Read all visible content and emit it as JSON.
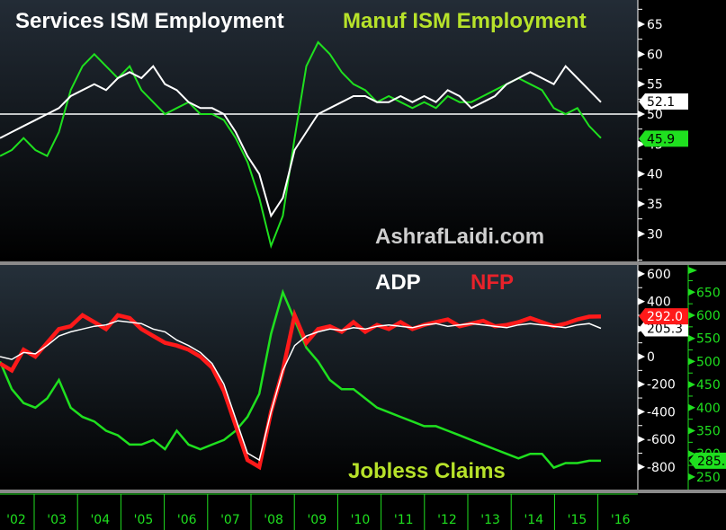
{
  "chart_data": [
    {
      "type": "line",
      "title": "Services ISM Employment vs Manuf ISM Employment",
      "watermark": "AshrafLaidi.com",
      "x": [
        "'02",
        "'03",
        "'04",
        "'05",
        "'06",
        "'07",
        "'08",
        "'09",
        "'10",
        "'11",
        "'12",
        "'13",
        "'14",
        "'15",
        "'16"
      ],
      "yaxis": {
        "ticks": [
          30,
          35,
          40,
          45,
          50,
          55,
          60,
          65
        ],
        "range": [
          25,
          68
        ],
        "side": "right"
      },
      "reference_line": 50,
      "series": [
        {
          "name": "Services ISM Employment",
          "color": "#ffffff",
          "last_value": 52.1,
          "values": [
            46,
            47,
            48,
            49,
            50,
            51,
            53,
            54,
            55,
            54,
            56,
            57,
            56,
            58,
            55,
            54,
            52,
            51,
            51,
            50,
            47,
            43,
            40,
            33,
            36,
            44,
            47,
            50,
            51,
            52,
            53,
            53,
            52,
            52,
            53,
            52,
            53,
            52,
            54,
            53,
            51,
            52,
            53,
            55,
            56,
            57,
            56,
            55,
            58,
            56,
            54,
            52
          ]
        },
        {
          "name": "Manuf ISM Employment",
          "color": "#1fe01f",
          "last_value": 45.9,
          "values": [
            43,
            44,
            46,
            44,
            43,
            47,
            54,
            58,
            60,
            58,
            56,
            58,
            54,
            52,
            50,
            51,
            52,
            50,
            50,
            49,
            46,
            42,
            36,
            28,
            33,
            46,
            58,
            62,
            60,
            57,
            55,
            54,
            52,
            53,
            52,
            51,
            52,
            51,
            53,
            52,
            52,
            53,
            54,
            55,
            56,
            55,
            54,
            51,
            50,
            51,
            48,
            46
          ]
        }
      ],
      "labels": {
        "services": "Services ISM Employment",
        "manuf": "Manuf ISM Employment"
      }
    },
    {
      "type": "line",
      "title": "ADP vs NFP vs Jobless Claims",
      "x": [
        "'02",
        "'03",
        "'04",
        "'05",
        "'06",
        "'07",
        "'08",
        "'09",
        "'10",
        "'11",
        "'12",
        "'13",
        "'14",
        "'15",
        "'16"
      ],
      "yaxis_left": {
        "ticks": [
          -800,
          -600,
          -400,
          -200,
          0,
          200,
          400,
          600
        ],
        "range": [
          -880,
          640
        ]
      },
      "yaxis_right": {
        "ticks": [
          250,
          300,
          350,
          400,
          450,
          500,
          550,
          600,
          650
        ],
        "range": [
          230,
          680
        ]
      },
      "series": [
        {
          "name": "ADP",
          "color": "#ffffff",
          "axis": "left",
          "last_value": 205.3,
          "values": [
            0,
            -20,
            30,
            20,
            80,
            150,
            180,
            200,
            220,
            230,
            260,
            250,
            240,
            200,
            180,
            120,
            80,
            30,
            -50,
            -200,
            -450,
            -700,
            -750,
            -400,
            -100,
            80,
            150,
            180,
            200,
            190,
            210,
            200,
            220,
            230,
            220,
            210,
            230,
            240,
            220,
            230,
            240,
            230,
            220,
            210,
            230,
            240,
            230,
            220,
            210,
            230,
            240,
            205
          ]
        },
        {
          "name": "NFP",
          "color": "#ff1a1a",
          "axis": "left",
          "last_value": 292.0,
          "values": [
            -50,
            -100,
            50,
            0,
            100,
            200,
            220,
            300,
            250,
            200,
            300,
            280,
            200,
            150,
            100,
            80,
            50,
            0,
            -80,
            -250,
            -500,
            -750,
            -800,
            -400,
            -100,
            300,
            100,
            200,
            220,
            180,
            250,
            180,
            230,
            200,
            250,
            200,
            230,
            250,
            270,
            220,
            240,
            260,
            220,
            230,
            250,
            280,
            250,
            220,
            240,
            270,
            290,
            292
          ]
        },
        {
          "name": "Jobless Claims",
          "color": "#1fe01f",
          "axis": "right",
          "last_value": 285.0,
          "values": [
            500,
            440,
            410,
            400,
            420,
            460,
            400,
            380,
            370,
            350,
            340,
            320,
            320,
            330,
            310,
            350,
            320,
            310,
            320,
            330,
            350,
            380,
            430,
            560,
            650,
            590,
            530,
            500,
            460,
            440,
            440,
            420,
            400,
            390,
            380,
            370,
            360,
            360,
            350,
            340,
            330,
            320,
            310,
            300,
            290,
            300,
            300,
            270,
            280,
            280,
            285,
            285
          ]
        }
      ],
      "labels": {
        "adp": "ADP",
        "nfp": "NFP",
        "claims": "Jobless Claims"
      }
    }
  ],
  "badges": {
    "services": "52.1",
    "manuf": "45.9",
    "nfp": "292.0",
    "adp": "205.3",
    "claims": "285.0"
  },
  "colors": {
    "white": "#ffffff",
    "green": "#1fe01f",
    "red": "#ff1a1a",
    "lime_title": "#b7e22a",
    "watermark": "#cfcfcf"
  }
}
